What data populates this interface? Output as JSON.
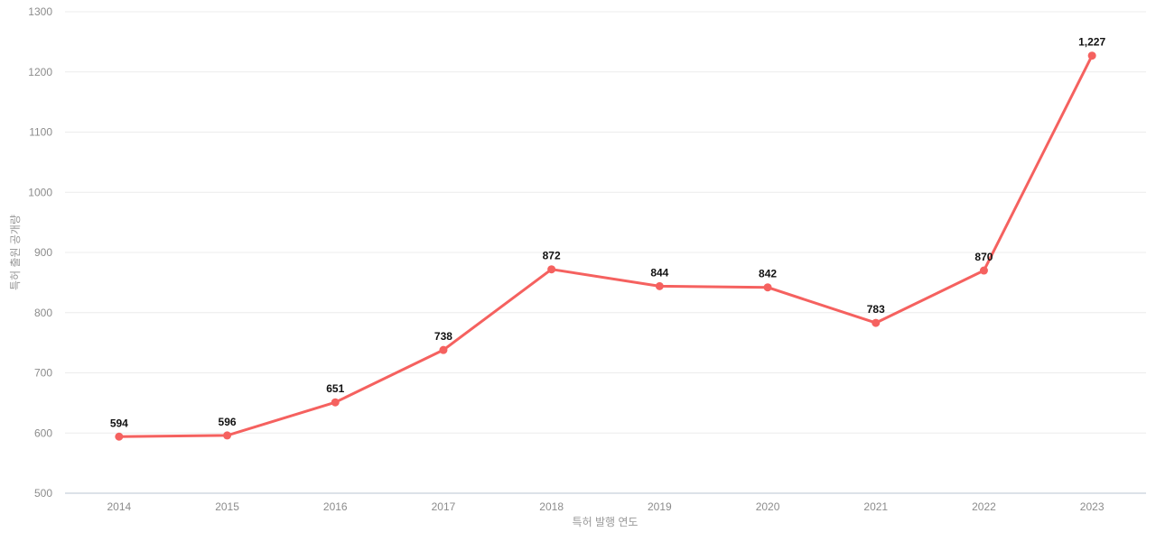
{
  "chart_data": {
    "type": "line",
    "title": "",
    "categories": [
      "2014",
      "2015",
      "2016",
      "2017",
      "2018",
      "2019",
      "2020",
      "2021",
      "2022",
      "2023"
    ],
    "values": [
      594,
      596,
      651,
      738,
      872,
      844,
      842,
      783,
      870,
      1227
    ],
    "data_labels": [
      "594",
      "596",
      "651",
      "738",
      "872",
      "844",
      "842",
      "783",
      "870",
      "1,227"
    ],
    "xlabel": "특허 발행 연도",
    "ylabel": "특허 출원 공개량",
    "ylim": [
      500,
      1300
    ],
    "ytick_step": 100,
    "yticks": [
      "500",
      "600",
      "700",
      "800",
      "900",
      "1000",
      "1100",
      "1200",
      "1300"
    ],
    "grid": true,
    "legend": "none",
    "line_color": "#f5615f",
    "marker_color": "#f5615f",
    "point_label_color": "#111111",
    "tick_label_color": "#8c8c8c",
    "axis_title_color": "#999999",
    "gridline_color": "#ececec",
    "axis_line_color": "#b9c4d0",
    "background_color": "#ffffff"
  }
}
